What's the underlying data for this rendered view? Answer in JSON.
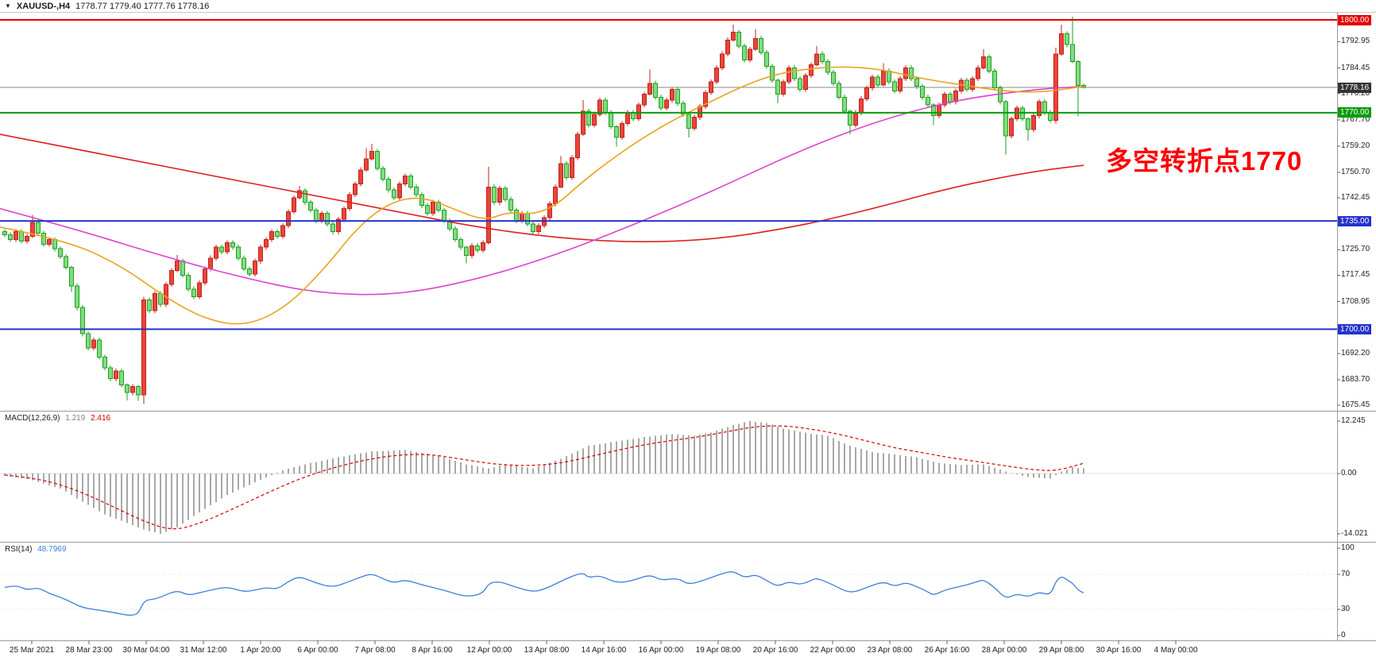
{
  "header": {
    "symbol": "XAUUSD-,H4",
    "ohlc": "1778.77 1779.40 1777.76 1778.16"
  },
  "annotation": {
    "text": "多空转折点1770",
    "color": "#ff0000"
  },
  "current_price": {
    "price": 1778.16,
    "label": "1778.16",
    "line_color": "#8a8a8a",
    "badge_bg": "#343434"
  },
  "price_levels": [
    {
      "price": 1800.0,
      "label": "1800.00",
      "color": "#e60000",
      "width": 2
    },
    {
      "price": 1770.0,
      "label": "1770.00",
      "color": "#0a9b0a",
      "width": 2
    },
    {
      "price": 1735.0,
      "label": "1735.00",
      "color": "#2433cc",
      "width": 2
    },
    {
      "price": 1700.0,
      "label": "1700.00",
      "color": "#2433cc",
      "width": 2
    }
  ],
  "price_axis": {
    "ticks": [
      "1792.95",
      "1784.45",
      "1776.20",
      "1767.70",
      "1759.20",
      "1750.70",
      "1742.45",
      "1725.70",
      "1717.45",
      "1708.95",
      "1692.20",
      "1683.70",
      "1675.45"
    ]
  },
  "colors": {
    "up_fill": "#e8453c",
    "up_border": "#c02318",
    "down_fill": "#7fdd7f",
    "down_border": "#1f9e1f",
    "ma_red": "#dd2222",
    "ma_magenta": "#dd44cc",
    "ma_orange": "#eba21f",
    "macd_hist": "#a8a8a8",
    "macd_signal": "#d40000",
    "rsi_line": "#3e7fd8",
    "panel_border": "#9a9a9a",
    "header_border": "#c8c8c8"
  },
  "chart_data": {
    "type": "candlestick",
    "symbol": "XAUUSD-",
    "timeframe": "H4",
    "ylim": [
      1675.45,
      1800.0
    ],
    "time_labels": [
      "25 Mar 2021",
      "28 Mar 23:00",
      "30 Mar 04:00",
      "31 Mar 12:00",
      "1 Apr 20:00",
      "6 Apr 00:00",
      "7 Apr 08:00",
      "8 Apr 16:00",
      "12 Apr 00:00",
      "13 Apr 08:00",
      "14 Apr 16:00",
      "16 Apr 00:00",
      "19 Apr 08:00",
      "20 Apr 16:00",
      "22 Apr 00:00",
      "23 Apr 08:00",
      "26 Apr 16:00",
      "28 Apr 00:00",
      "29 Apr 08:00",
      "30 Apr 16:00",
      "4 May 00:00"
    ],
    "first_open": 1731.5,
    "closes": [
      1730.5,
      1729,
      1731.5,
      1728.5,
      1730,
      1734.5,
      1731,
      1727.5,
      1729,
      1726,
      1723.5,
      1720,
      1714,
      1707,
      1698.5,
      1694,
      1696.5,
      1691,
      1687.5,
      1684,
      1686.5,
      1682,
      1679.5,
      1681.5,
      1678.8,
      1709.5,
      1706,
      1711.5,
      1708,
      1714.5,
      1719,
      1722,
      1717.5,
      1713,
      1710.5,
      1715,
      1719.5,
      1723,
      1726.5,
      1725,
      1728,
      1726.5,
      1723,
      1719.5,
      1717.8,
      1722,
      1726.5,
      1729,
      1731.5,
      1730,
      1733.5,
      1738,
      1742.5,
      1744.8,
      1741,
      1738.5,
      1735,
      1737.5,
      1734,
      1731.5,
      1735.5,
      1739,
      1743.5,
      1747,
      1751.5,
      1755,
      1757.5,
      1752,
      1748.5,
      1745,
      1742.5,
      1747,
      1749.5,
      1746,
      1743.5,
      1740,
      1737.5,
      1741,
      1738.5,
      1735,
      1732.5,
      1729,
      1726.5,
      1723.8,
      1727,
      1725.5,
      1728,
      1746,
      1741,
      1745.5,
      1742,
      1738.5,
      1735,
      1737.5,
      1734,
      1731.5,
      1733.5,
      1736,
      1740.5,
      1746,
      1753.5,
      1749,
      1755.5,
      1763,
      1770.5,
      1766,
      1769.5,
      1774,
      1770,
      1765.5,
      1762,
      1766.5,
      1770,
      1768,
      1772.5,
      1776,
      1779.5,
      1775,
      1771.5,
      1774,
      1777.5,
      1773,
      1769.5,
      1765,
      1768.5,
      1772,
      1776.5,
      1780,
      1784.5,
      1789,
      1793.5,
      1796,
      1791.5,
      1787,
      1790.5,
      1794,
      1789.5,
      1785,
      1780.5,
      1776,
      1780,
      1784.5,
      1781,
      1777.5,
      1782,
      1785.5,
      1789,
      1786.5,
      1783,
      1779.5,
      1775,
      1770.5,
      1766,
      1770,
      1774.5,
      1778,
      1781.5,
      1779,
      1783.5,
      1780,
      1777,
      1781,
      1784.5,
      1781,
      1778.5,
      1775,
      1772.5,
      1769,
      1772.5,
      1776,
      1773.5,
      1777,
      1780.5,
      1777.5,
      1781,
      1784.5,
      1788,
      1783.5,
      1778,
      1773.5,
      1762.5,
      1768,
      1771.5,
      1768,
      1764.5,
      1769,
      1773.5,
      1770,
      1767.5,
      1789,
      1795.5,
      1792,
      1786.5,
      1778.8,
      1778.16
    ],
    "wick_extensions_by_index": {
      "5": [
        2.5,
        0.5
      ],
      "12": [
        0.5,
        2
      ],
      "22": [
        0.5,
        2.5
      ],
      "24": [
        0.5,
        2
      ],
      "25": [
        1,
        3
      ],
      "31": [
        2,
        0.5
      ],
      "53": [
        1.5,
        0.5
      ],
      "65": [
        3.5,
        0.5
      ],
      "66": [
        2.5,
        0.5
      ],
      "83": [
        0.5,
        2.5
      ],
      "87": [
        6.5,
        0.5
      ],
      "100": [
        2.5,
        0.5
      ],
      "104": [
        3.5,
        0.5
      ],
      "110": [
        0.5,
        3
      ],
      "116": [
        4.5,
        0.5
      ],
      "123": [
        0.5,
        3
      ],
      "131": [
        2.5,
        0.5
      ],
      "135": [
        3,
        0.5
      ],
      "139": [
        0.5,
        3
      ],
      "146": [
        2.5,
        0.5
      ],
      "152": [
        0.5,
        3
      ],
      "158": [
        2.5,
        0.5
      ],
      "167": [
        0.5,
        3
      ],
      "176": [
        2.5,
        0.5
      ],
      "180": [
        0.5,
        6
      ],
      "184": [
        0.5,
        3.5
      ],
      "189": [
        2,
        1
      ],
      "190": [
        3,
        0.5
      ],
      "192": [
        9,
        0.5
      ],
      "193": [
        0.5,
        10
      ],
      "194": [
        0.6,
        0.4
      ]
    },
    "ma_red_anchors": [
      [
        0,
        1763
      ],
      [
        100,
        1758
      ],
      [
        200,
        1753
      ],
      [
        300,
        1748
      ],
      [
        400,
        1743
      ],
      [
        500,
        1738
      ],
      [
        600,
        1733
      ],
      [
        700,
        1729.5
      ],
      [
        800,
        1728
      ],
      [
        900,
        1729
      ],
      [
        1000,
        1733
      ],
      [
        1100,
        1739
      ],
      [
        1200,
        1746
      ],
      [
        1300,
        1751
      ],
      [
        1364,
        1753
      ]
    ],
    "ma_magenta_anchors": [
      [
        0,
        1739
      ],
      [
        100,
        1732
      ],
      [
        200,
        1724
      ],
      [
        300,
        1717
      ],
      [
        400,
        1711.5
      ],
      [
        500,
        1711
      ],
      [
        600,
        1716
      ],
      [
        700,
        1724
      ],
      [
        800,
        1734
      ],
      [
        900,
        1745
      ],
      [
        1000,
        1757
      ],
      [
        1100,
        1767
      ],
      [
        1200,
        1774
      ],
      [
        1300,
        1777.5
      ],
      [
        1364,
        1778.5
      ]
    ],
    "ma_orange_anchors": [
      [
        0,
        1733
      ],
      [
        80,
        1729
      ],
      [
        150,
        1721
      ],
      [
        210,
        1710
      ],
      [
        260,
        1703
      ],
      [
        310,
        1701
      ],
      [
        360,
        1707
      ],
      [
        410,
        1720
      ],
      [
        450,
        1733
      ],
      [
        490,
        1741
      ],
      [
        530,
        1743
      ],
      [
        570,
        1739
      ],
      [
        610,
        1735
      ],
      [
        640,
        1738
      ],
      [
        670,
        1737
      ],
      [
        700,
        1740
      ],
      [
        730,
        1747
      ],
      [
        770,
        1755
      ],
      [
        810,
        1762
      ],
      [
        850,
        1768
      ],
      [
        890,
        1773
      ],
      [
        930,
        1778
      ],
      [
        970,
        1782
      ],
      [
        1010,
        1784
      ],
      [
        1060,
        1785
      ],
      [
        1110,
        1784
      ],
      [
        1160,
        1781
      ],
      [
        1210,
        1779
      ],
      [
        1260,
        1777
      ],
      [
        1310,
        1776.5
      ],
      [
        1364,
        1778.5
      ]
    ],
    "macd": {
      "label": "MACD(12,26,9)",
      "main_value": "1.219",
      "signal_value": "2.416",
      "scale_labels": [
        "12.245",
        "0.00",
        "-14.021"
      ],
      "scale_max": 12.245,
      "scale_min": -14.021,
      "hist_anchors": [
        [
          0,
          -0.5
        ],
        [
          5,
          -1.5
        ],
        [
          10,
          -3.5
        ],
        [
          14,
          -6.5
        ],
        [
          18,
          -9.5
        ],
        [
          22,
          -11.5
        ],
        [
          25,
          -13
        ],
        [
          28,
          -14.021
        ],
        [
          31,
          -12.5
        ],
        [
          35,
          -9
        ],
        [
          40,
          -5
        ],
        [
          45,
          -2
        ],
        [
          50,
          0.8
        ],
        [
          55,
          2.5
        ],
        [
          60,
          3.8
        ],
        [
          66,
          5.2
        ],
        [
          72,
          5.5
        ],
        [
          78,
          4.2
        ],
        [
          83,
          2.2
        ],
        [
          87,
          1.2
        ],
        [
          90,
          2.2
        ],
        [
          95,
          1.2
        ],
        [
          100,
          3.5
        ],
        [
          105,
          6.5
        ],
        [
          110,
          7.5
        ],
        [
          115,
          8.5
        ],
        [
          120,
          9.2
        ],
        [
          124,
          8.8
        ],
        [
          127,
          9.6
        ],
        [
          131,
          11.3
        ],
        [
          134,
          12.245
        ],
        [
          137,
          11.8
        ],
        [
          140,
          10.5
        ],
        [
          145,
          9.3
        ],
        [
          148,
          8.8
        ],
        [
          152,
          6.5
        ],
        [
          156,
          5
        ],
        [
          160,
          4.5
        ],
        [
          164,
          3.8
        ],
        [
          168,
          2.5
        ],
        [
          172,
          2
        ],
        [
          176,
          2.2
        ],
        [
          180,
          0.5
        ],
        [
          184,
          -0.8
        ],
        [
          188,
          -1.2
        ],
        [
          190,
          0.5
        ],
        [
          192,
          1.5
        ],
        [
          194,
          1.219
        ]
      ],
      "signal_anchors": [
        [
          0,
          -0.3
        ],
        [
          5,
          -1
        ],
        [
          10,
          -2.5
        ],
        [
          15,
          -5
        ],
        [
          20,
          -8
        ],
        [
          24,
          -10.5
        ],
        [
          28,
          -12.5
        ],
        [
          31,
          -13
        ],
        [
          34,
          -12
        ],
        [
          38,
          -10
        ],
        [
          43,
          -7
        ],
        [
          48,
          -4
        ],
        [
          53,
          -1.2
        ],
        [
          58,
          1
        ],
        [
          64,
          3
        ],
        [
          70,
          4.3
        ],
        [
          76,
          4.6
        ],
        [
          82,
          3.4
        ],
        [
          88,
          2.2
        ],
        [
          94,
          1.8
        ],
        [
          100,
          2.4
        ],
        [
          106,
          4.2
        ],
        [
          112,
          6
        ],
        [
          118,
          7.4
        ],
        [
          124,
          8.4
        ],
        [
          130,
          9.8
        ],
        [
          135,
          11
        ],
        [
          140,
          11.2
        ],
        [
          145,
          10.4
        ],
        [
          150,
          9.2
        ],
        [
          155,
          7.6
        ],
        [
          160,
          6
        ],
        [
          165,
          4.9
        ],
        [
          170,
          3.7
        ],
        [
          175,
          2.8
        ],
        [
          180,
          1.8
        ],
        [
          185,
          0.9
        ],
        [
          189,
          0.6
        ],
        [
          194,
          2.416
        ]
      ]
    },
    "rsi": {
      "label": "RSI(14)",
      "value": "48.7969",
      "levels": [
        "100",
        "70",
        "30",
        "0"
      ],
      "anchors": [
        [
          0,
          55
        ],
        [
          2,
          58
        ],
        [
          4,
          52
        ],
        [
          6,
          55
        ],
        [
          8,
          48
        ],
        [
          10,
          44
        ],
        [
          12,
          38
        ],
        [
          14,
          32
        ],
        [
          16,
          30
        ],
        [
          18,
          28
        ],
        [
          20,
          26
        ],
        [
          22,
          23
        ],
        [
          24,
          24
        ],
        [
          25,
          40
        ],
        [
          27,
          42
        ],
        [
          28,
          44
        ],
        [
          31,
          52
        ],
        [
          33,
          46
        ],
        [
          35,
          49
        ],
        [
          37,
          52
        ],
        [
          40,
          56
        ],
        [
          43,
          50
        ],
        [
          45,
          52
        ],
        [
          47,
          55
        ],
        [
          49,
          53
        ],
        [
          51,
          62
        ],
        [
          53,
          68
        ],
        [
          56,
          60
        ],
        [
          59,
          55
        ],
        [
          62,
          62
        ],
        [
          64,
          67
        ],
        [
          66,
          71
        ],
        [
          68,
          65
        ],
        [
          70,
          60
        ],
        [
          72,
          64
        ],
        [
          75,
          58
        ],
        [
          79,
          52
        ],
        [
          83,
          44
        ],
        [
          86,
          48
        ],
        [
          87,
          60
        ],
        [
          89,
          62
        ],
        [
          92,
          55
        ],
        [
          95,
          50
        ],
        [
          97,
          53
        ],
        [
          100,
          62
        ],
        [
          102,
          68
        ],
        [
          104,
          72
        ],
        [
          105,
          66
        ],
        [
          107,
          69
        ],
        [
          110,
          60
        ],
        [
          113,
          63
        ],
        [
          116,
          70
        ],
        [
          118,
          63
        ],
        [
          121,
          66
        ],
        [
          123,
          58
        ],
        [
          126,
          64
        ],
        [
          129,
          71
        ],
        [
          131,
          74
        ],
        [
          133,
          66
        ],
        [
          135,
          70
        ],
        [
          137,
          63
        ],
        [
          139,
          56
        ],
        [
          141,
          62
        ],
        [
          143,
          58
        ],
        [
          145,
          63
        ],
        [
          146,
          66
        ],
        [
          149,
          58
        ],
        [
          152,
          48
        ],
        [
          155,
          55
        ],
        [
          158,
          62
        ],
        [
          160,
          56
        ],
        [
          162,
          61
        ],
        [
          164,
          56
        ],
        [
          166,
          50
        ],
        [
          167,
          46
        ],
        [
          169,
          52
        ],
        [
          171,
          55
        ],
        [
          173,
          58
        ],
        [
          175,
          62
        ],
        [
          176,
          64
        ],
        [
          178,
          55
        ],
        [
          180,
          42
        ],
        [
          182,
          48
        ],
        [
          184,
          44
        ],
        [
          186,
          50
        ],
        [
          188,
          46
        ],
        [
          189,
          62
        ],
        [
          190,
          68
        ],
        [
          191,
          64
        ],
        [
          192,
          60
        ],
        [
          193,
          52
        ],
        [
          194,
          48.8
        ]
      ]
    }
  }
}
